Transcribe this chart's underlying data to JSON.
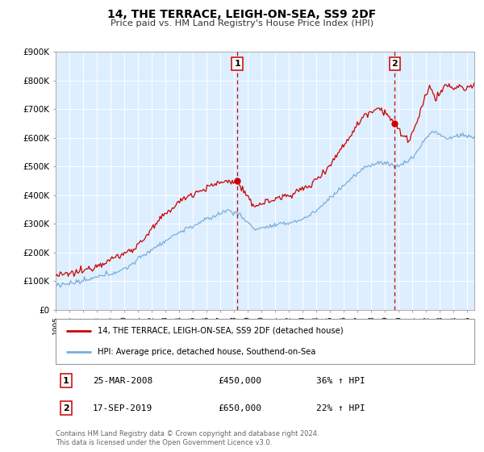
{
  "title": "14, THE TERRACE, LEIGH-ON-SEA, SS9 2DF",
  "subtitle": "Price paid vs. HM Land Registry's House Price Index (HPI)",
  "legend_line1": "14, THE TERRACE, LEIGH-ON-SEA, SS9 2DF (detached house)",
  "legend_line2": "HPI: Average price, detached house, Southend-on-Sea",
  "sale1_label": "1",
  "sale2_label": "2",
  "sale1_date": "25-MAR-2008",
  "sale1_price": "£450,000",
  "sale1_hpi": "36% ↑ HPI",
  "sale2_date": "17-SEP-2019",
  "sale2_price": "£650,000",
  "sale2_hpi": "22% ↑ HPI",
  "footer1": "Contains HM Land Registry data © Crown copyright and database right 2024.",
  "footer2": "This data is licensed under the Open Government Licence v3.0.",
  "red_color": "#cc0000",
  "blue_color": "#7aaddb",
  "bg_color": "#ddeeff",
  "grid_color": "#c8d8e8",
  "sale1_x": 2008.23,
  "sale1_y": 450000,
  "sale2_x": 2019.71,
  "sale2_y": 650000,
  "xmin": 1995.0,
  "xmax": 2025.5,
  "ymin": 0,
  "ymax": 900000,
  "yticks": [
    0,
    100000,
    200000,
    300000,
    400000,
    500000,
    600000,
    700000,
    800000,
    900000
  ]
}
